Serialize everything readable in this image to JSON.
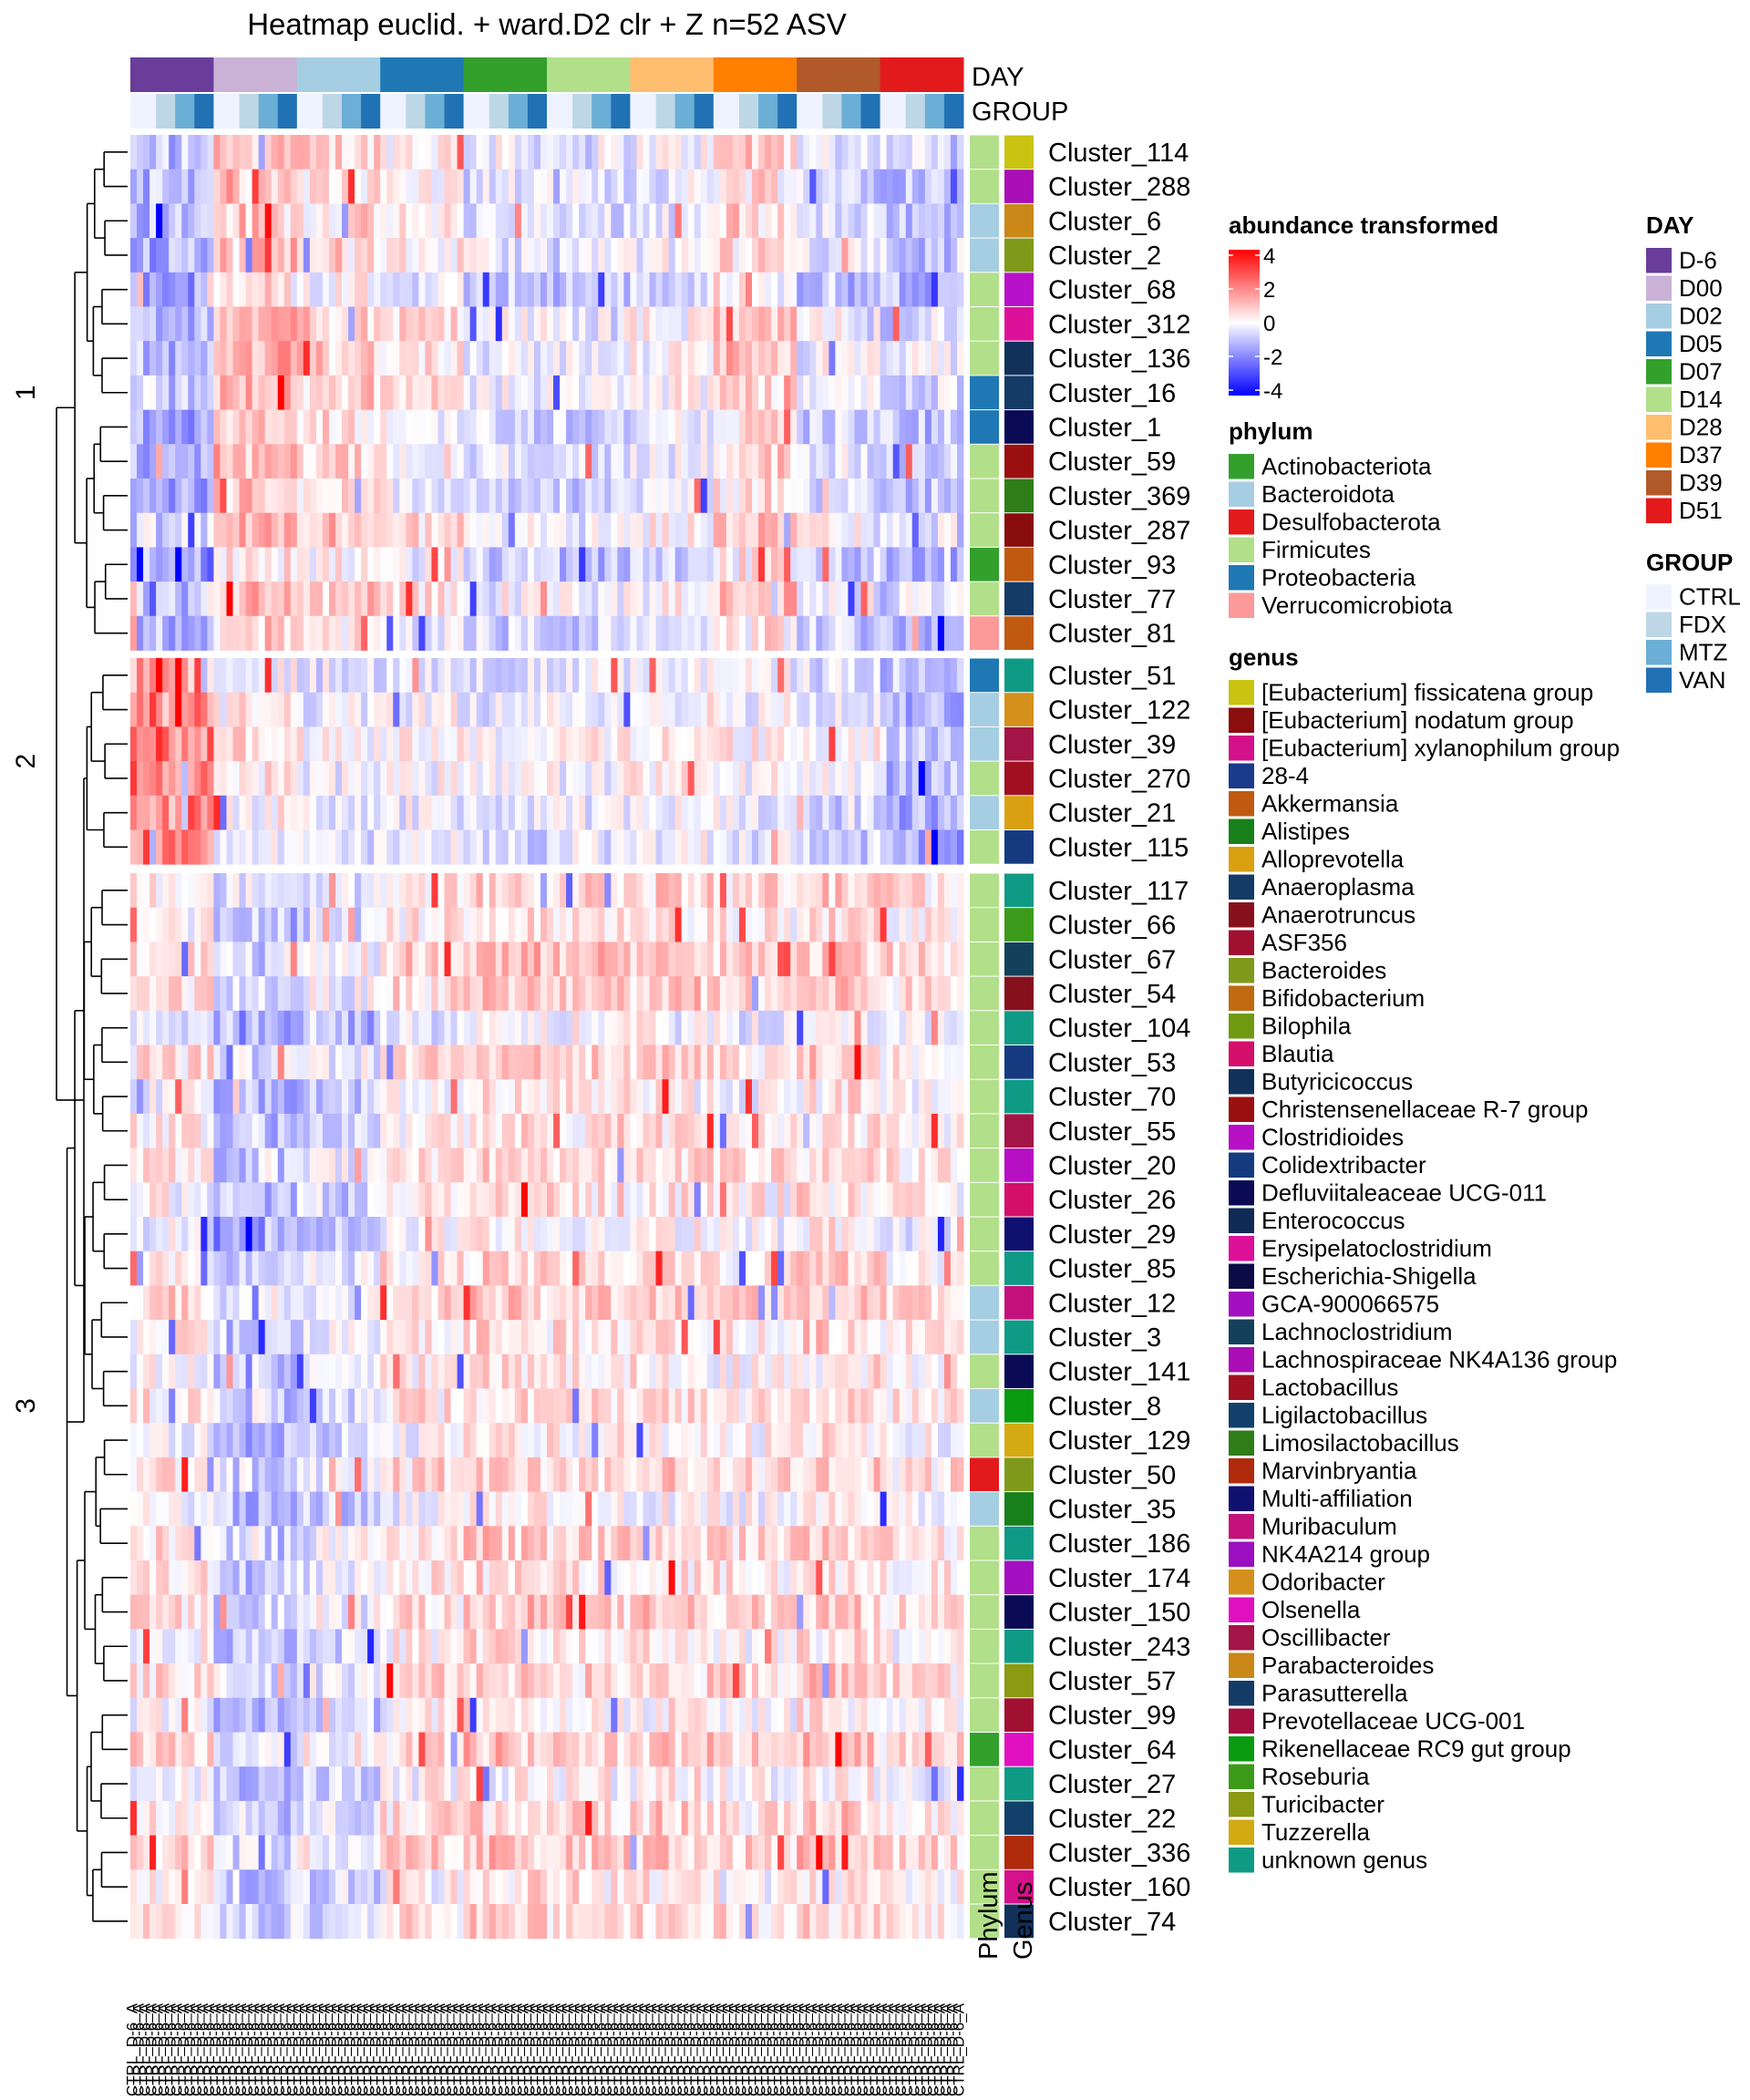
{
  "chart_data": {
    "type": "heatmap",
    "title": "Heatmap euclid. + ward.D2 clr + Z n=52 ASV",
    "annotation_labels": {
      "day": "DAY",
      "group": "GROUP",
      "phylum": "Phylum",
      "genus": "Genus"
    },
    "row_splits": [
      {
        "label": "1",
        "rows": [
          "Cluster_114",
          "Cluster_288",
          "Cluster_6",
          "Cluster_2",
          "Cluster_68",
          "Cluster_312",
          "Cluster_136",
          "Cluster_16",
          "Cluster_1",
          "Cluster_59",
          "Cluster_369",
          "Cluster_287",
          "Cluster_93",
          "Cluster_77",
          "Cluster_81"
        ]
      },
      {
        "label": "2",
        "rows": [
          "Cluster_51",
          "Cluster_122",
          "Cluster_39",
          "Cluster_270",
          "Cluster_21",
          "Cluster_115"
        ]
      },
      {
        "label": "3",
        "rows": [
          "Cluster_117",
          "Cluster_66",
          "Cluster_67",
          "Cluster_54",
          "Cluster_104",
          "Cluster_53",
          "Cluster_70",
          "Cluster_55",
          "Cluster_20",
          "Cluster_26",
          "Cluster_29",
          "Cluster_85",
          "Cluster_12",
          "Cluster_3",
          "Cluster_141",
          "Cluster_8",
          "Cluster_129",
          "Cluster_50",
          "Cluster_35",
          "Cluster_186",
          "Cluster_174",
          "Cluster_150",
          "Cluster_243",
          "Cluster_57",
          "Cluster_99",
          "Cluster_64",
          "Cluster_27",
          "Cluster_22",
          "Cluster_336",
          "Cluster_160",
          "Cluster_74"
        ]
      }
    ],
    "row_phylum": [
      "Firmicutes",
      "Firmicutes",
      "Bacteroidota",
      "Bacteroidota",
      "Firmicutes",
      "Firmicutes",
      "Firmicutes",
      "Proteobacteria",
      "Proteobacteria",
      "Firmicutes",
      "Firmicutes",
      "Firmicutes",
      "Actinobacteriota",
      "Firmicutes",
      "Verrucomicrobiota",
      "Proteobacteria",
      "Bacteroidota",
      "Bacteroidota",
      "Firmicutes",
      "Bacteroidota",
      "Firmicutes",
      "Firmicutes",
      "Firmicutes",
      "Firmicutes",
      "Firmicutes",
      "Firmicutes",
      "Firmicutes",
      "Firmicutes",
      "Firmicutes",
      "Firmicutes",
      "Firmicutes",
      "Firmicutes",
      "Firmicutes",
      "Bacteroidota",
      "Bacteroidota",
      "Firmicutes",
      "Bacteroidota",
      "Firmicutes",
      "Desulfobacterota",
      "Bacteroidota",
      "Firmicutes",
      "Firmicutes",
      "Firmicutes",
      "Firmicutes",
      "Firmicutes",
      "Firmicutes",
      "Actinobacteriota",
      "Firmicutes",
      "Firmicutes",
      "Firmicutes",
      "Firmicutes",
      "Firmicutes"
    ],
    "row_genus_colors": [
      "#c9c411",
      "#a90fb4",
      "#c98818",
      "#7f9a1a",
      "#b712c9",
      "#dd1199",
      "#11315a",
      "#143a66",
      "#0b0b55",
      "#9a1010",
      "#2e7d18",
      "#8a0d0d",
      "#c05a10",
      "#143a66",
      "#c05a10",
      "#0f9a86",
      "#d4901a",
      "#a31546",
      "#a01020",
      "#d9a012",
      "#153a80",
      "#0f9a86",
      "#3c9a1a",
      "#13405a",
      "#86111d",
      "#0f9a86",
      "#153a80",
      "#0f9a86",
      "#a31546",
      "#b70fc4",
      "#d40f6a",
      "#101070",
      "#0f9a86",
      "#c2117a",
      "#0f9a86",
      "#0b0b55",
      "#0a9a10",
      "#d4aa12",
      "#7f9a1a",
      "#17801a",
      "#0f9a86",
      "#a30fc0",
      "#0b0b55",
      "#0f9a86",
      "#8a9a12",
      "#a01030",
      "#e010c0",
      "#0f9a86",
      "#11406a",
      "#b02a0c",
      "#d4118a",
      "#11315a"
    ],
    "column_groups": [
      {
        "day": "D-6",
        "n": 13
      },
      {
        "day": "D00",
        "n": 13
      },
      {
        "day": "D02",
        "n": 13
      },
      {
        "day": "D05",
        "n": 13
      },
      {
        "day": "D07",
        "n": 13
      },
      {
        "day": "D14",
        "n": 13
      },
      {
        "day": "D28",
        "n": 13
      },
      {
        "day": "D37",
        "n": 13
      },
      {
        "day": "D39",
        "n": 13
      },
      {
        "day": "D51",
        "n": 13
      }
    ],
    "group_order": [
      "CTRL",
      "FDX",
      "MTZ",
      "VAN"
    ],
    "column_label_prefix": "CTRL_D-6_A",
    "color_scale": {
      "min": -4,
      "max": 4,
      "ticks": [
        4,
        2,
        0,
        -2,
        -4
      ],
      "low": "#0000ff",
      "mid": "#ffffff",
      "high": "#ff0000"
    }
  },
  "legends": {
    "abundance": {
      "title": "abundance transformed",
      "ticks": [
        "4",
        "2",
        "0",
        "-2",
        "-4"
      ]
    },
    "phylum": {
      "title": "phylum",
      "items": [
        {
          "label": "Actinobacteriota",
          "color": "#33a02c"
        },
        {
          "label": "Bacteroidota",
          "color": "#a6cee3"
        },
        {
          "label": "Desulfobacterota",
          "color": "#e31a1c"
        },
        {
          "label": "Firmicutes",
          "color": "#b2df8a"
        },
        {
          "label": "Proteobacteria",
          "color": "#1f78b4"
        },
        {
          "label": "Verrucomicrobiota",
          "color": "#fb9a99"
        }
      ]
    },
    "genus": {
      "title": "genus",
      "items": [
        {
          "label": "[Eubacterium] fissicatena group",
          "color": "#c9c411"
        },
        {
          "label": "[Eubacterium] nodatum group",
          "color": "#8b0d0d"
        },
        {
          "label": "[Eubacterium] xylanophilum group",
          "color": "#d4118a"
        },
        {
          "label": "28-4",
          "color": "#1b3a8a"
        },
        {
          "label": "Akkermansia",
          "color": "#c05a10"
        },
        {
          "label": "Alistipes",
          "color": "#17801a"
        },
        {
          "label": "Alloprevotella",
          "color": "#d9a012"
        },
        {
          "label": "Anaeroplasma",
          "color": "#153a66"
        },
        {
          "label": "Anaerotruncus",
          "color": "#86111d"
        },
        {
          "label": "ASF356",
          "color": "#a01030"
        },
        {
          "label": "Bacteroides",
          "color": "#7f9a1a"
        },
        {
          "label": "Bifidobacterium",
          "color": "#c06a10"
        },
        {
          "label": "Bilophila",
          "color": "#6f9a12"
        },
        {
          "label": "Blautia",
          "color": "#d40f6a"
        },
        {
          "label": "Butyricicoccus",
          "color": "#11315a"
        },
        {
          "label": "Christensenellaceae R-7 group",
          "color": "#9a1010"
        },
        {
          "label": "Clostridioides",
          "color": "#b70fc4"
        },
        {
          "label": "Colidextribacter",
          "color": "#153a80"
        },
        {
          "label": "Defluviitaleaceae UCG-011",
          "color": "#0b0b55"
        },
        {
          "label": "Enterococcus",
          "color": "#0f2a55"
        },
        {
          "label": "Erysipelatoclostridium",
          "color": "#dd1199"
        },
        {
          "label": "Escherichia-Shigella",
          "color": "#0b0b45"
        },
        {
          "label": "GCA-900066575",
          "color": "#a30fc0"
        },
        {
          "label": "Lachnoclostridium",
          "color": "#13405a"
        },
        {
          "label": "Lachnospiraceae NK4A136 group",
          "color": "#a90fb4"
        },
        {
          "label": "Lactobacillus",
          "color": "#a01020"
        },
        {
          "label": "Ligilactobacillus",
          "color": "#11406a"
        },
        {
          "label": "Limosilactobacillus",
          "color": "#2e7d18"
        },
        {
          "label": "Marvinbryantia",
          "color": "#b02a0c"
        },
        {
          "label": "Multi-affiliation",
          "color": "#101070"
        },
        {
          "label": "Muribaculum",
          "color": "#c2117a"
        },
        {
          "label": "NK4A214 group",
          "color": "#9a0fc0"
        },
        {
          "label": "Odoribacter",
          "color": "#d4901a"
        },
        {
          "label": "Olsenella",
          "color": "#e010c0"
        },
        {
          "label": "Oscillibacter",
          "color": "#a31546"
        },
        {
          "label": "Parabacteroides",
          "color": "#c98818"
        },
        {
          "label": "Parasutterella",
          "color": "#143a66"
        },
        {
          "label": "Prevotellaceae UCG-001",
          "color": "#a31040"
        },
        {
          "label": "Rikenellaceae RC9 gut group",
          "color": "#0a9a10"
        },
        {
          "label": "Roseburia",
          "color": "#3c9a1a"
        },
        {
          "label": "Turicibacter",
          "color": "#8a9a12"
        },
        {
          "label": "Tuzzerella",
          "color": "#d4aa12"
        },
        {
          "label": "unknown genus",
          "color": "#0f9a86"
        }
      ]
    },
    "day": {
      "title": "DAY",
      "items": [
        {
          "label": "D-6",
          "color": "#6a3d9a"
        },
        {
          "label": "D00",
          "color": "#cab2d6"
        },
        {
          "label": "D02",
          "color": "#a6cee3"
        },
        {
          "label": "D05",
          "color": "#1f78b4"
        },
        {
          "label": "D07",
          "color": "#33a02c"
        },
        {
          "label": "D14",
          "color": "#b2df8a"
        },
        {
          "label": "D28",
          "color": "#fdbf6f"
        },
        {
          "label": "D37",
          "color": "#ff7f00"
        },
        {
          "label": "D39",
          "color": "#b15928"
        },
        {
          "label": "D51",
          "color": "#e31a1c"
        }
      ]
    },
    "group": {
      "title": "GROUP",
      "items": [
        {
          "label": "CTRL",
          "color": "#eff3ff"
        },
        {
          "label": "FDX",
          "color": "#bdd7e7"
        },
        {
          "label": "MTZ",
          "color": "#6baed6"
        },
        {
          "label": "VAN",
          "color": "#2171b5"
        }
      ]
    }
  }
}
